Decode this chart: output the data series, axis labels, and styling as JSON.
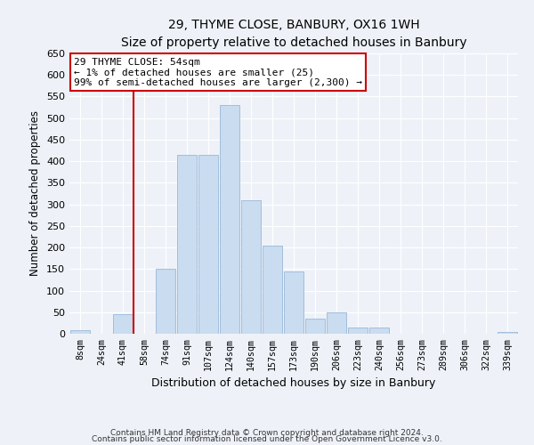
{
  "title": "29, THYME CLOSE, BANBURY, OX16 1WH",
  "subtitle": "Size of property relative to detached houses in Banbury",
  "xlabel": "Distribution of detached houses by size in Banbury",
  "ylabel": "Number of detached properties",
  "bar_labels": [
    "8sqm",
    "24sqm",
    "41sqm",
    "58sqm",
    "74sqm",
    "91sqm",
    "107sqm",
    "124sqm",
    "140sqm",
    "157sqm",
    "173sqm",
    "190sqm",
    "206sqm",
    "223sqm",
    "240sqm",
    "256sqm",
    "273sqm",
    "289sqm",
    "306sqm",
    "322sqm",
    "339sqm"
  ],
  "bar_values": [
    8,
    0,
    45,
    0,
    150,
    415,
    415,
    530,
    310,
    205,
    145,
    35,
    50,
    15,
    15,
    0,
    0,
    0,
    0,
    0,
    5
  ],
  "bar_color": "#c9dcf0",
  "bar_edge_color": "#9ab8d8",
  "vline_index": 3,
  "vline_color": "#cc0000",
  "ylim": [
    0,
    650
  ],
  "yticks": [
    0,
    50,
    100,
    150,
    200,
    250,
    300,
    350,
    400,
    450,
    500,
    550,
    600,
    650
  ],
  "annotation_title": "29 THYME CLOSE: 54sqm",
  "annotation_line1": "← 1% of detached houses are smaller (25)",
  "annotation_line2": "99% of semi-detached houses are larger (2,300) →",
  "footer1": "Contains HM Land Registry data © Crown copyright and database right 2024.",
  "footer2": "Contains public sector information licensed under the Open Government Licence v3.0.",
  "bg_color": "#eef2f8",
  "plot_bg_color": "#eef2f8",
  "grid_color": "#ffffff"
}
